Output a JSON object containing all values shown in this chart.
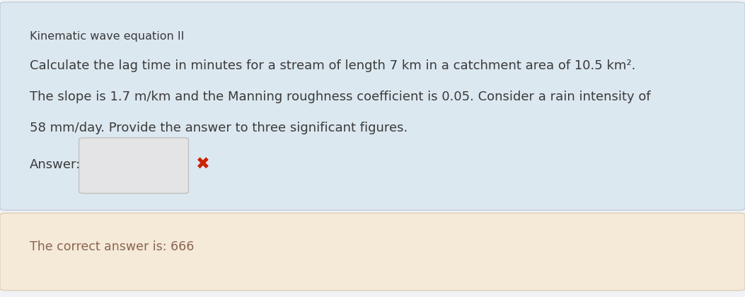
{
  "title": "Kinematic wave equation II",
  "question_line1": "Calculate the lag time in minutes for a stream of length 7 km in a catchment area of 10.5 km².",
  "question_line2": "The slope is 1.7 m/km and the Manning roughness coefficient is 0.05. Consider a rain intensity of",
  "question_line3": "58 mm/day. Provide the answer to three significant figures.",
  "answer_label": "Answer:",
  "correct_answer_text": "The correct answer is: 666",
  "bg_color_outer": "#f0f2f5",
  "bg_color_top": "#dce8f0",
  "bg_color_bottom": "#f5e9d8",
  "text_color_main": "#3a3a3a",
  "text_color_x": "#cc2200",
  "text_color_correct": "#8b6550",
  "input_box_color": "#e4e4e6",
  "input_box_border": "#c0c0c0",
  "font_size_title": 11.5,
  "font_size_body": 13.0,
  "font_size_correct": 12.5,
  "font_size_x": 17
}
